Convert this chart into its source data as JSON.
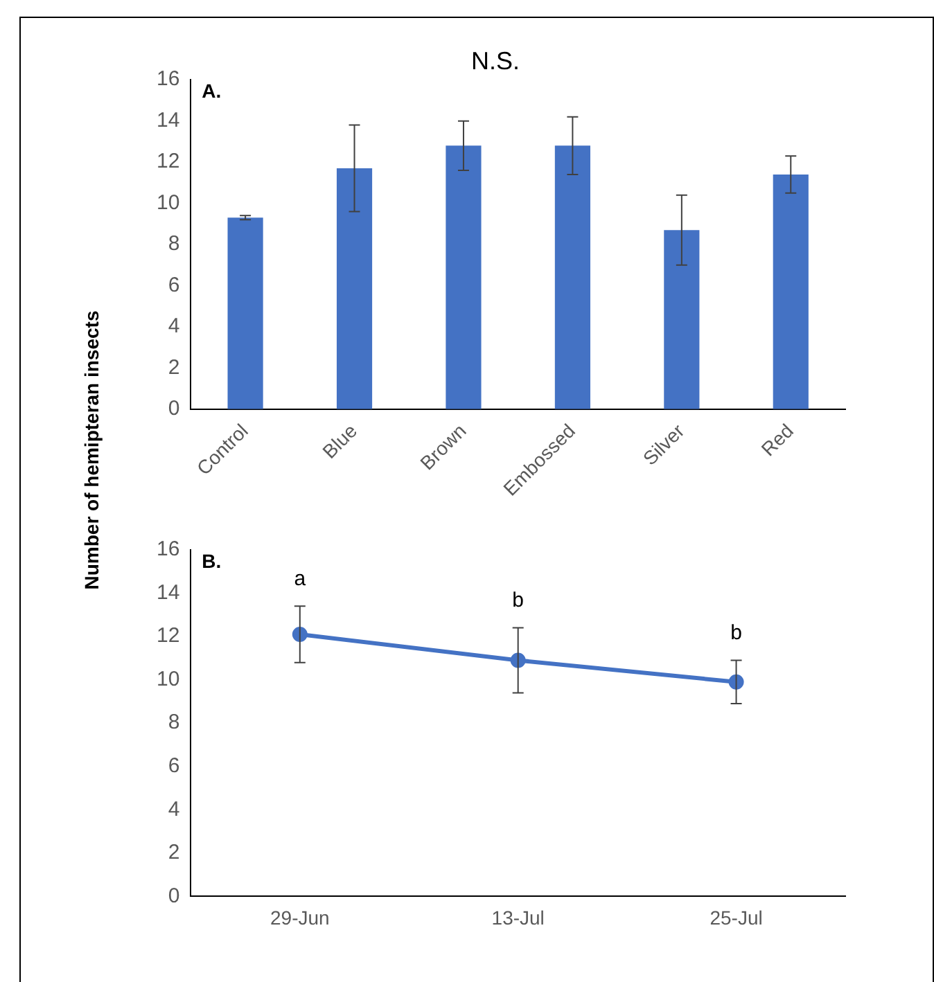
{
  "chart_data": [
    {
      "type": "bar",
      "title": "N.S.",
      "ylabel": "Number of hemipteran insects",
      "categories": [
        "Control",
        "Blue",
        "Brown",
        "Embossed",
        "Silver",
        "Red"
      ],
      "values": [
        9.3,
        11.7,
        12.8,
        12.8,
        8.7,
        11.4
      ],
      "errors": [
        0.1,
        2.1,
        1.2,
        1.4,
        1.7,
        0.9
      ],
      "color": "#4472c4",
      "ylim": [
        0,
        16
      ],
      "yticks": [
        0,
        2,
        4,
        6,
        8,
        10,
        12,
        14,
        16
      ],
      "annotations": [
        "A."
      ]
    },
    {
      "type": "line",
      "categories": [
        "29-Jun",
        "13-Jul",
        "25-Jul"
      ],
      "values": [
        12.1,
        10.9,
        9.9
      ],
      "errors": [
        1.3,
        1.5,
        1.0
      ],
      "color": "#4472c4",
      "marker": "circle",
      "ylim": [
        0,
        16
      ],
      "yticks": [
        0,
        2,
        4,
        6,
        8,
        10,
        12,
        14,
        16
      ],
      "annotations": [
        "B.",
        "a",
        "b",
        "b"
      ]
    }
  ]
}
